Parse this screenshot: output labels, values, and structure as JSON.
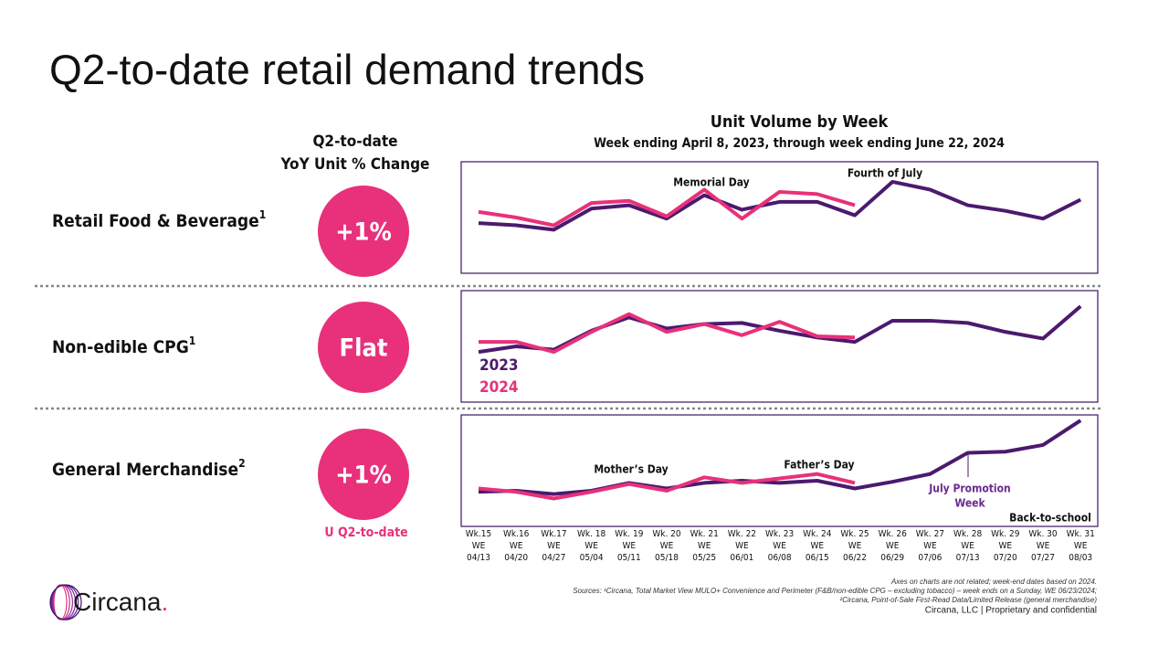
{
  "title": "Q2-to-date retail demand trends",
  "metric_header": [
    "Q2-to-date",
    "YoY Unit % Change"
  ],
  "metric_footer": "U Q2-to-date",
  "rows": [
    {
      "label": "Retail Food & Beverage",
      "note": "1",
      "metric": "+1%"
    },
    {
      "label": "Non-edible CPG",
      "note": "1",
      "metric": "Flat"
    },
    {
      "label": "General Merchandise",
      "note": "2",
      "metric": "+1%"
    }
  ],
  "chart_heading": {
    "title": "Unit Volume by Week",
    "subtitle": "Week ending April 8, 2023, through week ending June 22, 2024"
  },
  "chart_data": [
    {
      "type": "line",
      "ylim": [
        0,
        100
      ],
      "series": [
        {
          "color": "#4b1a6e",
          "values": [
            45,
            43,
            39,
            58,
            61,
            49,
            70,
            57,
            64,
            64,
            52,
            82,
            75,
            61,
            56,
            49,
            66
          ]
        },
        {
          "color": "#e8317a",
          "values": [
            55,
            50,
            43,
            63,
            65,
            51,
            75,
            49,
            73,
            71,
            61,
            null,
            null,
            null,
            null,
            null,
            null
          ]
        }
      ],
      "annotations": [
        [
          "Memorial Day"
        ],
        [
          "Fourth of July"
        ]
      ]
    },
    {
      "type": "line",
      "ylim": [
        0,
        100
      ],
      "series": [
        {
          "name": "2023",
          "color": "#4b1a6e",
          "values": [
            45,
            50,
            47,
            64,
            76,
            66,
            70,
            71,
            64,
            58,
            54,
            73,
            73,
            71,
            63,
            57,
            86
          ]
        },
        {
          "name": "2024",
          "color": "#e8317a",
          "values": [
            54,
            54,
            45,
            63,
            79,
            63,
            70,
            60,
            72,
            59,
            58,
            null,
            null,
            null,
            null,
            null,
            null
          ]
        }
      ]
    },
    {
      "type": "line",
      "ylim": [
        0,
        100
      ],
      "categories": [
        [
          "Wk.15",
          "WE",
          "04/13"
        ],
        [
          "Wk.16",
          "WE",
          "04/20"
        ],
        [
          "Wk.17",
          "WE",
          "04/27"
        ],
        [
          "Wk. 18",
          "WE",
          "05/04"
        ],
        [
          "Wk. 19",
          "WE",
          "05/11"
        ],
        [
          "Wk. 20",
          "WE",
          "05/18"
        ],
        [
          "Wk. 21",
          "WE",
          "05/25"
        ],
        [
          "Wk. 22",
          "WE",
          "06/01"
        ],
        [
          "Wk. 23",
          "WE",
          "06/08"
        ],
        [
          "Wk. 24",
          "WE",
          "06/15"
        ],
        [
          "Wk. 25",
          "WE",
          "06/22"
        ],
        [
          "Wk. 26",
          "WE",
          "06/29"
        ],
        [
          "Wk. 27",
          "WE",
          "07/06"
        ],
        [
          "Wk. 28",
          "WE",
          "07/13"
        ],
        [
          "Wk. 29",
          "WE",
          "07/20"
        ],
        [
          "Wk. 30",
          "WE",
          "07/27"
        ],
        [
          "Wk. 31",
          "WE",
          "08/03"
        ]
      ],
      "series": [
        {
          "color": "#4b1a6e",
          "values": [
            31,
            32,
            29,
            32,
            39,
            34,
            39,
            41,
            39,
            41,
            34,
            40,
            47,
            66,
            67,
            73,
            95
          ]
        },
        {
          "color": "#e8317a",
          "values": [
            34,
            31,
            25,
            31,
            38,
            32,
            44,
            39,
            43,
            47,
            39,
            null,
            null,
            null,
            null,
            null,
            null
          ]
        }
      ],
      "annotations": [
        [
          "Mother’s Day"
        ],
        [
          "Father’s Day"
        ],
        [
          "July Promotion",
          "Week"
        ],
        [
          "Back-to-school"
        ]
      ]
    }
  ],
  "footnotes": [
    "Axes on charts are not related; week-end dates based on 2024.",
    "Sources: ¹Circana, Total Market View MULO+ Convenience and Perimeter (F&B/non-edible CPG – excluding tobacco) – week ends on a Sunday, WE 06/23/2024;",
    "²Circana, Point-of-Sale First-Read Data/Limited Release (general merchandise)"
  ],
  "footer": "Circana, LLC | Proprietary and confidential",
  "logo": {
    "name": "Circana",
    "dot": "."
  }
}
